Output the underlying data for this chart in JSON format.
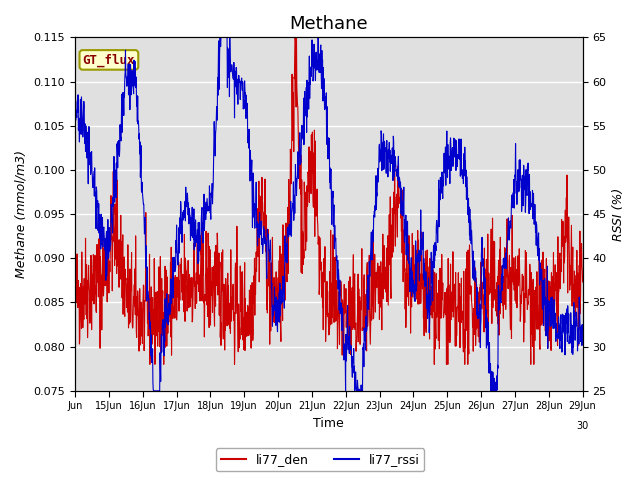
{
  "title": "Methane",
  "xlabel": "Time",
  "ylabel_left": "Methane (mmol/m3)",
  "ylabel_right": "RSSI (%)",
  "ylim_left": [
    0.075,
    0.115
  ],
  "ylim_right": [
    25,
    65
  ],
  "xlim": [
    0,
    15
  ],
  "x_tick_positions": [
    0,
    1,
    2,
    3,
    4,
    5,
    6,
    7,
    8,
    9,
    10,
    11,
    12,
    13,
    14,
    15
  ],
  "x_tick_labels": [
    "Jun",
    "15Jun",
    "16Jun",
    "17Jun",
    "18Jun",
    "19Jun",
    "20Jun",
    "21Jun",
    "22Jun",
    "23Jun",
    "24Jun",
    "25Jun",
    "26Jun",
    "27Jun",
    "28Jun",
    "29Jun"
  ],
  "x_tick_extra_pos": 15,
  "x_tick_extra_label": "30",
  "annotation_text": "GT_flux",
  "annotation_bg": "#ffffcc",
  "annotation_border": "#999900",
  "annotation_text_color": "#8b0000",
  "plot_bg": "#e0e0e0",
  "line_color_den": "#cc0000",
  "line_color_rssi": "#0000cc",
  "legend_labels": [
    "li77_den",
    "li77_rssi"
  ],
  "yticks_left": [
    0.075,
    0.08,
    0.085,
    0.09,
    0.095,
    0.1,
    0.105,
    0.11,
    0.115
  ],
  "yticks_right": [
    25,
    30,
    35,
    40,
    45,
    50,
    55,
    60,
    65
  ],
  "title_fontsize": 13,
  "axis_label_fontsize": 9,
  "tick_fontsize": 8
}
